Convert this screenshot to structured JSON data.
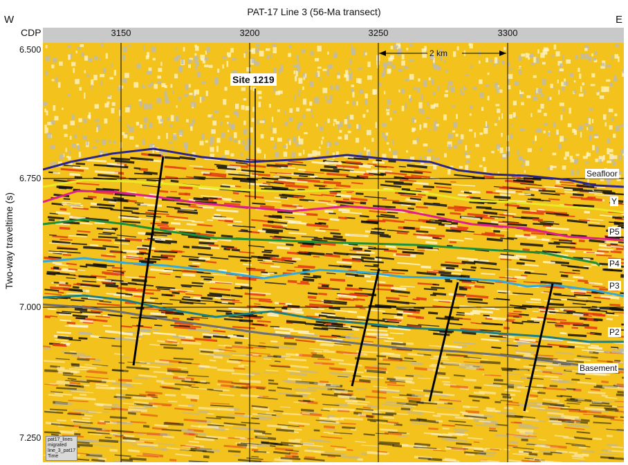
{
  "header": {
    "title": "PAT-17 Line 3 (56-Ma transect)",
    "west": "W",
    "east": "E"
  },
  "axes": {
    "x_title": "CDP",
    "x_ticks": [
      "3150",
      "3200",
      "3250",
      "3300"
    ],
    "y_title": "Two-way traveltime (s)",
    "y_ticks": [
      "6.500",
      "6.750",
      "7.000",
      "7.250"
    ]
  },
  "annotations": {
    "site": "Site 1219",
    "scale": "2 km"
  },
  "horizons": [
    {
      "label": "Seafloor",
      "color": "#2b2585"
    },
    {
      "label": "Y",
      "color": "#e9e92a"
    },
    {
      "label": "P5",
      "color": "#e0208a"
    },
    {
      "label": "P4",
      "color": "#1f8f3a"
    },
    {
      "label": "P3",
      "color": "#36a9d6"
    },
    {
      "label": "P2",
      "color": "#1e7f80"
    },
    {
      "label": "Basement",
      "color": "#6f6f6f"
    }
  ],
  "stamp": {
    "lines": [
      "pat17_lines",
      "migrated",
      "line_3_pat17",
      "Time"
    ]
  },
  "palette": {
    "background": "#f3c21c",
    "trough": "#111111",
    "peak": "#e23a12",
    "light": "#fff6cf"
  }
}
